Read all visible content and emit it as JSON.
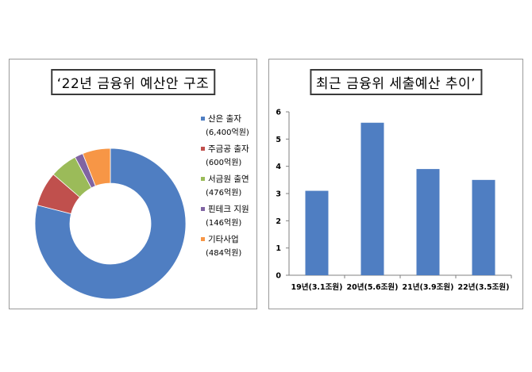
{
  "donut_panel": {
    "title": "‘22년 금융위 예산안 구조"
  },
  "bar_panel": {
    "title": "최근 금융위 세출예산 추이’"
  },
  "chart_data": [
    {
      "type": "pie",
      "style": "donut",
      "title": "‘22년 금융위 예산안 구조",
      "legend_position": "right",
      "slices": [
        {
          "label": "산은 출자",
          "value_label": "(6,400억원)",
          "value": 6400,
          "color": "#4f7ec2"
        },
        {
          "label": "주금공 출자",
          "value_label": "(600억원)",
          "value": 600,
          "color": "#c0504d"
        },
        {
          "label": "서금원 출연",
          "value_label": "(476억원)",
          "value": 476,
          "color": "#9bbb59"
        },
        {
          "label": "핀테크 지원",
          "value_label": "(146억원)",
          "value": 146,
          "color": "#8064a2"
        },
        {
          "label": "기타사업",
          "value_label": "(484억원)",
          "value": 484,
          "color": "#f79646"
        }
      ]
    },
    {
      "type": "bar",
      "title": "최근 금융위 세출예산 추이’",
      "categories": [
        "19년(3.1조원)",
        "20년(5.6조원)",
        "21년(3.9조원)",
        "22년(3.5조원)"
      ],
      "values": [
        3.1,
        5.6,
        3.9,
        3.5
      ],
      "ylim": [
        0,
        6
      ],
      "yticks": [
        "0",
        "1",
        "2",
        "3",
        "4",
        "5",
        "6"
      ],
      "color": "#4f7ec2",
      "grid": false
    }
  ]
}
